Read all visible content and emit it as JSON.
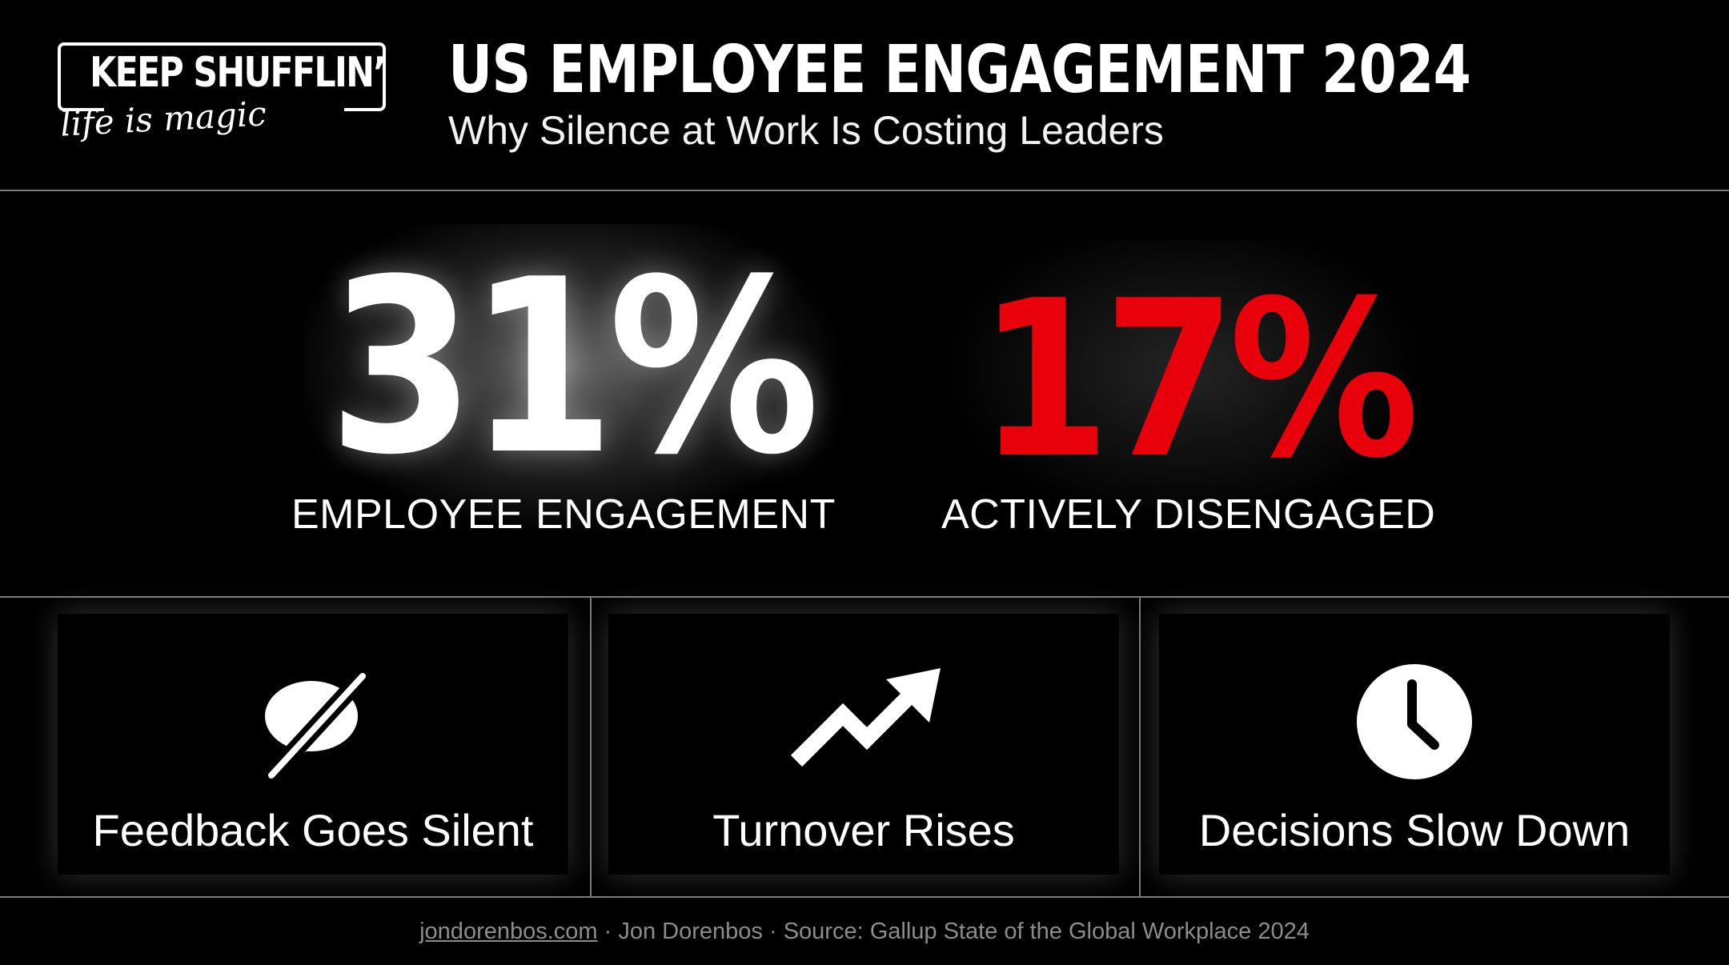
{
  "logo": {
    "name": "KEEP SHUFFLIN’",
    "tagline": "life is magic"
  },
  "header": {
    "title": "US EMPLOYEE ENGAGEMENT 2024",
    "subtitle": "Why Silence at Work Is Costing Leaders"
  },
  "stats": [
    {
      "value": "31%",
      "label": "EMPLOYEE ENGAGEMENT",
      "color": "#ffffff"
    },
    {
      "value": "17%",
      "label": "ACTIVELY DISENGAGED",
      "color": "#e8000b"
    }
  ],
  "cards": [
    {
      "icon": "no-chat-icon",
      "caption": "Feedback Goes Silent"
    },
    {
      "icon": "trending-up-icon",
      "caption": "Turnover Rises"
    },
    {
      "icon": "clock-icon",
      "caption": "Decisions Slow Down"
    }
  ],
  "footer": {
    "link": "jondorenbos.com",
    "rest": " · Jon Dorenbos · Source: Gallup State of the Global Workplace 2024"
  }
}
